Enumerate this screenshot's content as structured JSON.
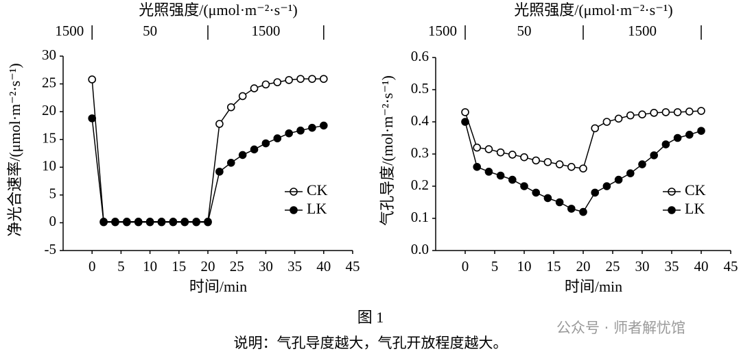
{
  "chart_data": [
    {
      "type": "line",
      "title": "光照强度/(μmol·m⁻²·s⁻¹)",
      "light_levels": {
        "ticks": [
          0,
          20,
          40
        ],
        "labels": [
          "1500",
          "50",
          "1500"
        ]
      },
      "x_label": "时间/min",
      "y_label": "净光合速率/(μmol·m⁻²·s⁻¹)",
      "x": [
        0,
        2,
        4,
        6,
        8,
        10,
        12,
        14,
        16,
        18,
        20,
        22,
        24,
        26,
        28,
        30,
        32,
        34,
        36,
        38,
        40
      ],
      "xlim": [
        -5,
        45
      ],
      "xticks": [
        0,
        5,
        10,
        15,
        20,
        25,
        30,
        35,
        40,
        45
      ],
      "ylim": [
        -5,
        30
      ],
      "yticks": [
        -5,
        0,
        5,
        10,
        15,
        20,
        25,
        30
      ],
      "legend": "lower right",
      "series": [
        {
          "name": "CK",
          "color": "#000000",
          "marker_fill": "#ffffff",
          "values": [
            25.8,
            0.2,
            0.2,
            0.2,
            0.2,
            0.2,
            0.2,
            0.2,
            0.2,
            0.2,
            0.2,
            17.8,
            20.8,
            22.8,
            24.2,
            24.9,
            25.3,
            25.7,
            25.9,
            25.9,
            25.9
          ]
        },
        {
          "name": "LK",
          "color": "#000000",
          "marker_fill": "#000000",
          "values": [
            18.8,
            0.1,
            0.1,
            0.1,
            0.1,
            0.1,
            0.1,
            0.1,
            0.1,
            0.1,
            0.1,
            9.2,
            10.8,
            12.2,
            13.2,
            14.3,
            15.2,
            16.1,
            16.6,
            17.1,
            17.5
          ]
        }
      ]
    },
    {
      "type": "line",
      "title": "光照强度/(μmol·m⁻²·s⁻¹)",
      "light_levels": {
        "ticks": [
          0,
          20,
          40
        ],
        "labels": [
          "1500",
          "50",
          "1500"
        ]
      },
      "x_label": "时间/min",
      "y_label": "气孔导度/(mol·m⁻²·s⁻¹)",
      "x": [
        0,
        2,
        4,
        6,
        8,
        10,
        12,
        14,
        16,
        18,
        20,
        22,
        24,
        26,
        28,
        30,
        32,
        34,
        36,
        38,
        40
      ],
      "xlim": [
        -5,
        45
      ],
      "xticks": [
        0,
        5,
        10,
        15,
        20,
        25,
        30,
        35,
        40,
        45
      ],
      "ylim": [
        0,
        0.6
      ],
      "yticks": [
        {
          "value": 0,
          "label": "0.0"
        },
        0.1,
        0.2,
        0.3,
        0.4,
        0.5,
        0.6
      ],
      "legend": "lower right",
      "series": [
        {
          "name": "CK",
          "color": "#000000",
          "marker_fill": "#ffffff",
          "values": [
            0.43,
            0.32,
            0.315,
            0.305,
            0.298,
            0.29,
            0.28,
            0.275,
            0.268,
            0.26,
            0.255,
            0.38,
            0.4,
            0.41,
            0.42,
            0.423,
            0.428,
            0.43,
            0.43,
            0.432,
            0.434
          ]
        },
        {
          "name": "LK",
          "color": "#000000",
          "marker_fill": "#000000",
          "values": [
            0.4,
            0.26,
            0.245,
            0.233,
            0.22,
            0.2,
            0.18,
            0.163,
            0.15,
            0.13,
            0.12,
            0.18,
            0.2,
            0.22,
            0.24,
            0.268,
            0.296,
            0.33,
            0.35,
            0.36,
            0.372
          ]
        }
      ]
    }
  ],
  "caption": "图 1",
  "note": "说明：气孔导度越大，气孔开放程度越大。",
  "watermark": "公众号 · 师者解忧馆"
}
